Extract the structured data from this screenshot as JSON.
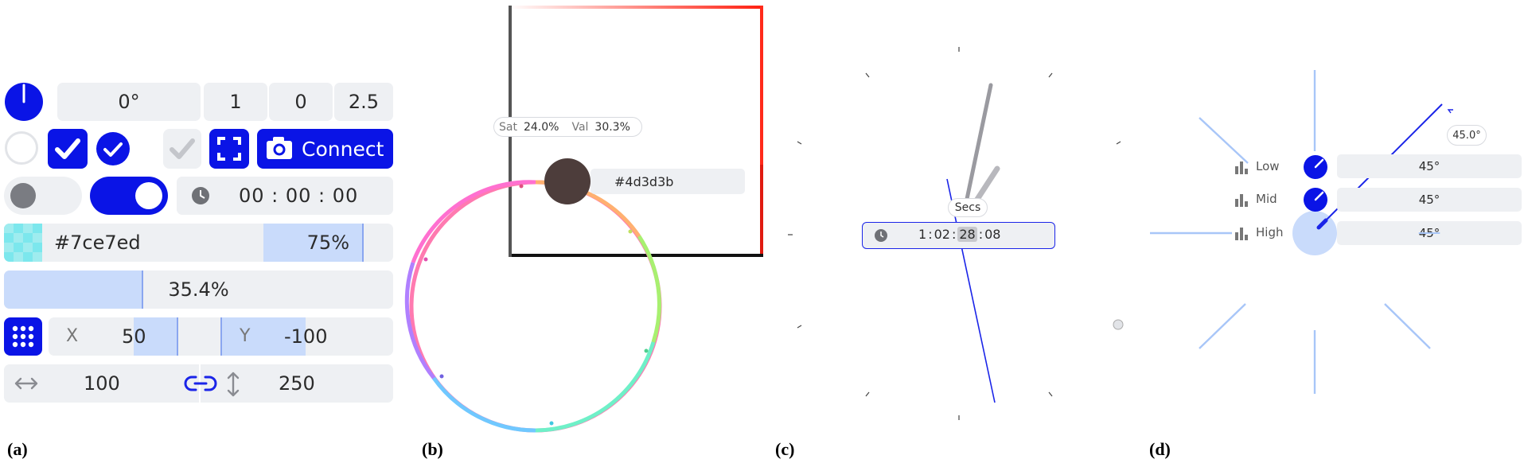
{
  "panel_a": {
    "label": "(a)",
    "angle_value": "0°",
    "vector": [
      "1",
      "0",
      "2.5"
    ],
    "connect_label": "Connect",
    "time_value": "00 : 00 : 00",
    "color_hex": "#7ce7ed",
    "color_alpha": "75%",
    "alpha_fraction": 0.75,
    "progress_value": "35.4%",
    "progress_fraction": 0.354,
    "x_label": "X",
    "x_value": "50",
    "y_label": "Y",
    "y_value": "-100",
    "width_value": "100",
    "height_value": "250",
    "colors": {
      "accent": "#0a14e6",
      "fill": "#c9dbfb",
      "swatch": "#7ce7ed"
    }
  },
  "panel_b": {
    "label": "(b)",
    "sat_label": "Sat",
    "sat_value": "24.0%",
    "val_label": "Val",
    "val_value": "30.3%",
    "hex_value": "#4d3d3b",
    "selected_color": "#4d3d3b"
  },
  "panel_c": {
    "label": "(c)",
    "tooltip": "Secs",
    "time_parts": [
      "1",
      "02",
      "28",
      "08"
    ]
  },
  "panel_d": {
    "label": "(d)",
    "angle_badge": "45.0°",
    "rows": [
      {
        "label": "Low",
        "value": "45°"
      },
      {
        "label": "Mid",
        "value": "45°"
      },
      {
        "label": "High",
        "value": "45°"
      }
    ]
  }
}
